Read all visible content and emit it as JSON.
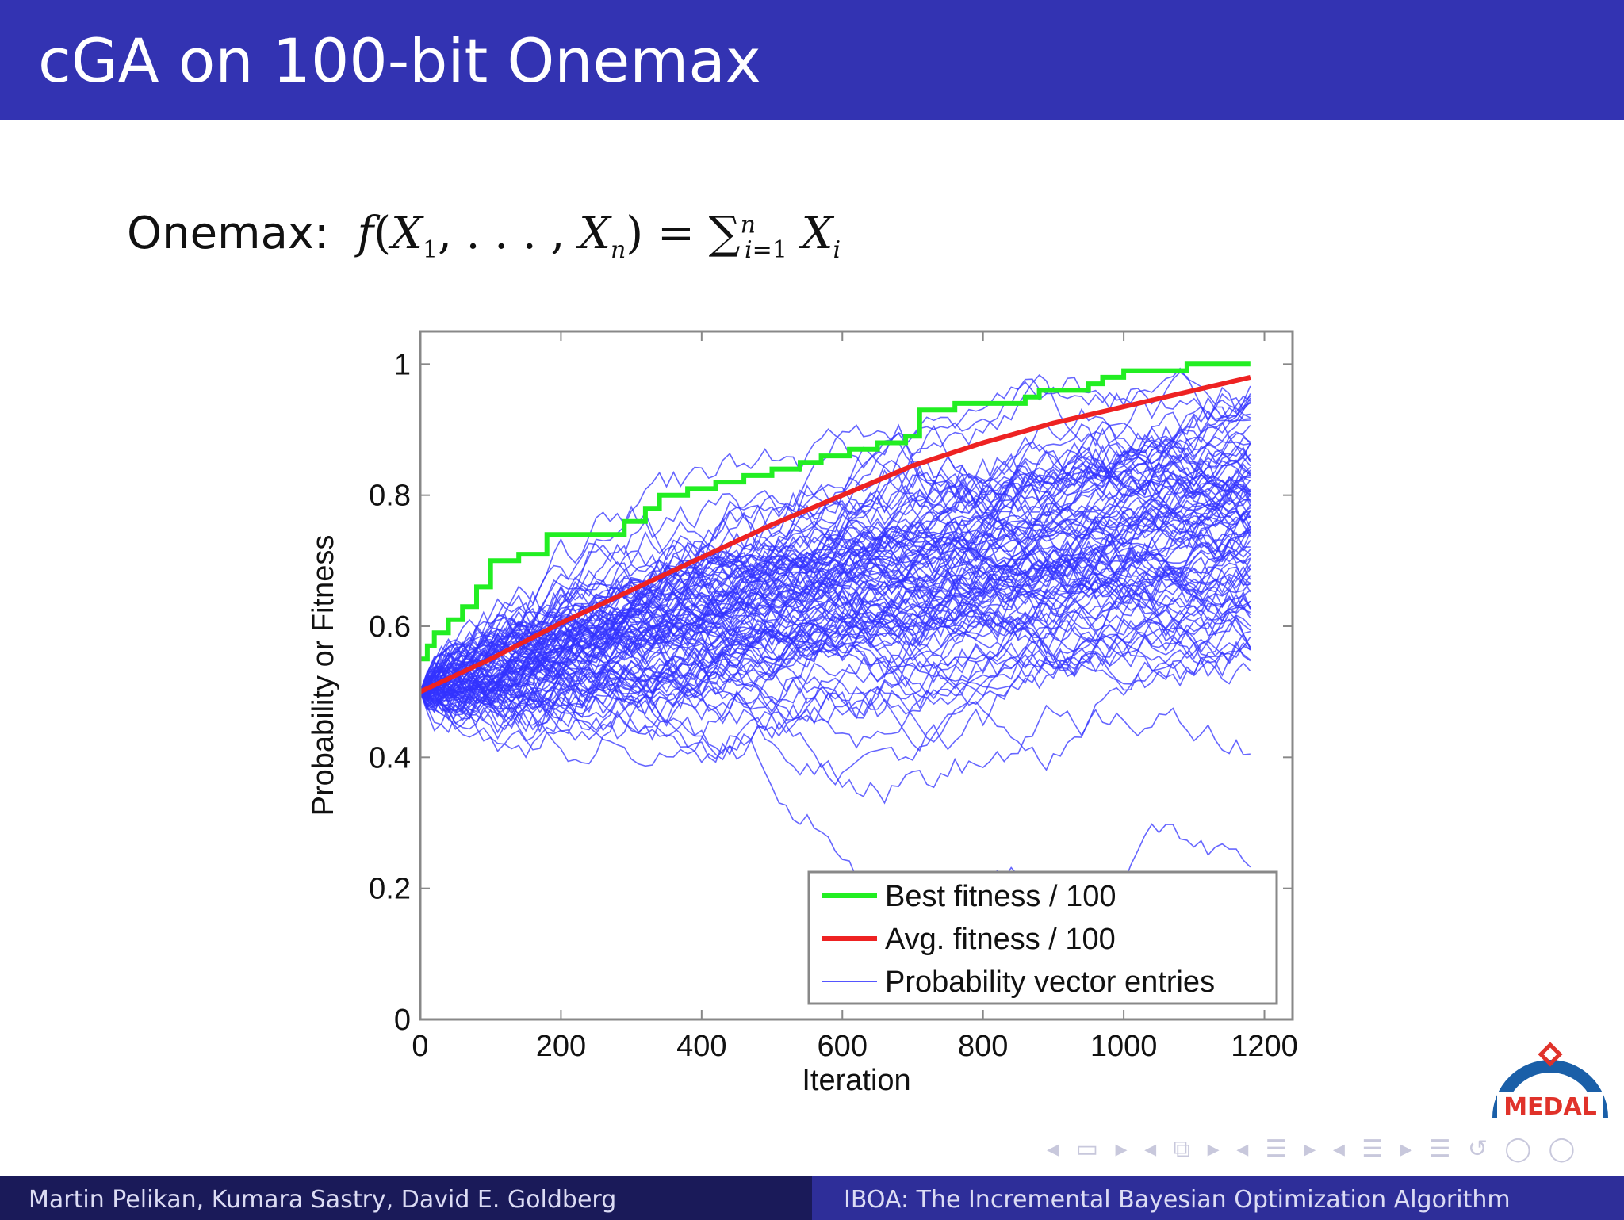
{
  "slide": {
    "title": "cGA on 100-bit Onemax",
    "formula_label": "Onemax:",
    "footer_authors": "Martin Pelikan, Kumara Sastry, David E. Goldberg",
    "footer_talk": "IBOA: The Incremental Bayesian Optimization Algorithm",
    "logo_text": "MEDAL",
    "colors": {
      "header": "#3333b2",
      "footer_left": "#1a1a59",
      "footer_right": "#2e2e99"
    }
  },
  "chart_data": {
    "type": "line",
    "title": "",
    "xlabel": "Iteration",
    "ylabel": "Probability or Fitness",
    "xlim": [
      0,
      1240
    ],
    "ylim": [
      0,
      1.05
    ],
    "xticks": [
      0,
      200,
      400,
      600,
      800,
      1000,
      1200
    ],
    "yticks": [
      0,
      0.2,
      0.4,
      0.6,
      0.8,
      1
    ],
    "grid": false,
    "legend_position": "bottom-right",
    "series": [
      {
        "name": "Best fitness / 100",
        "color": "#22ee22",
        "x": [
          0,
          10,
          20,
          40,
          60,
          80,
          100,
          140,
          180,
          250,
          290,
          320,
          340,
          380,
          420,
          460,
          500,
          540,
          570,
          610,
          650,
          690,
          710,
          760,
          860,
          880,
          950,
          970,
          1000,
          1060,
          1090,
          1180
        ],
        "y": [
          0.55,
          0.57,
          0.59,
          0.61,
          0.63,
          0.66,
          0.7,
          0.71,
          0.74,
          0.74,
          0.76,
          0.78,
          0.8,
          0.81,
          0.82,
          0.83,
          0.84,
          0.85,
          0.86,
          0.87,
          0.88,
          0.89,
          0.93,
          0.94,
          0.95,
          0.96,
          0.97,
          0.98,
          0.99,
          0.99,
          1.0,
          1.0
        ]
      },
      {
        "name": "Avg. fitness / 100",
        "color": "#ee2222",
        "x": [
          0,
          100,
          200,
          300,
          400,
          500,
          600,
          700,
          800,
          900,
          1000,
          1100,
          1180
        ],
        "y": [
          0.5,
          0.55,
          0.605,
          0.655,
          0.705,
          0.755,
          0.8,
          0.845,
          0.88,
          0.91,
          0.935,
          0.96,
          0.98
        ]
      },
      {
        "name": "Probability vector entries",
        "color": "#3333ff",
        "count": 100,
        "end_x": 1180
      }
    ]
  }
}
